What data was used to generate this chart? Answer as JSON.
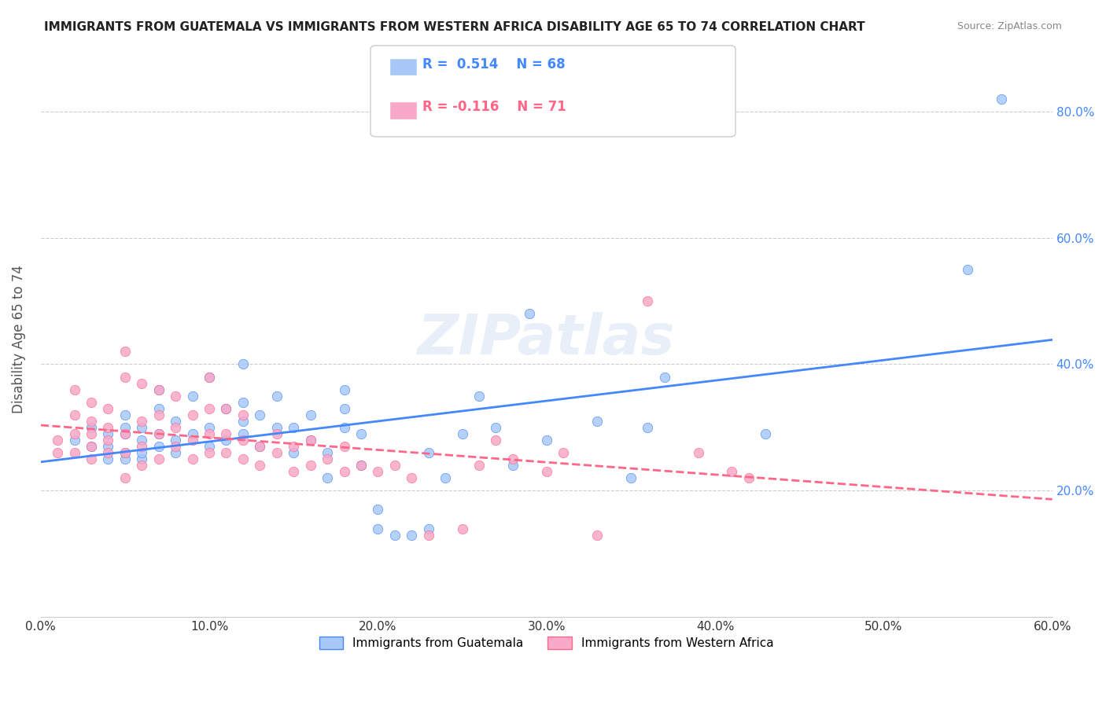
{
  "title": "IMMIGRANTS FROM GUATEMALA VS IMMIGRANTS FROM WESTERN AFRICA DISABILITY AGE 65 TO 74 CORRELATION CHART",
  "source": "Source: ZipAtlas.com",
  "xlabel_ticks": [
    "0.0%",
    "10.0%",
    "20.0%",
    "30.0%",
    "40.0%",
    "50.0%",
    "60.0%"
  ],
  "ylabel_ticks": [
    "20.0%",
    "40.0%",
    "60.0%",
    "80.0%"
  ],
  "xlim": [
    0.0,
    0.6
  ],
  "ylim": [
    0.0,
    0.88
  ],
  "ylabel": "Disability Age 65 to 74",
  "legend_label1": "Immigrants from Guatemala",
  "legend_label2": "Immigrants from Western Africa",
  "R1": 0.514,
  "N1": 68,
  "R2": -0.116,
  "N2": 71,
  "color_blue": "#a8c8f8",
  "color_pink": "#f8a8c8",
  "trendline1_color": "#4488ff",
  "trendline2_color": "#ff6688",
  "watermark": "ZIPatlas",
  "blue_scatter_x": [
    0.02,
    0.03,
    0.03,
    0.04,
    0.04,
    0.04,
    0.05,
    0.05,
    0.05,
    0.05,
    0.05,
    0.06,
    0.06,
    0.06,
    0.06,
    0.07,
    0.07,
    0.07,
    0.07,
    0.08,
    0.08,
    0.08,
    0.09,
    0.09,
    0.1,
    0.1,
    0.1,
    0.11,
    0.11,
    0.12,
    0.12,
    0.12,
    0.12,
    0.13,
    0.13,
    0.14,
    0.14,
    0.15,
    0.15,
    0.16,
    0.16,
    0.17,
    0.17,
    0.18,
    0.18,
    0.18,
    0.19,
    0.19,
    0.2,
    0.2,
    0.21,
    0.22,
    0.23,
    0.23,
    0.24,
    0.25,
    0.26,
    0.27,
    0.28,
    0.29,
    0.3,
    0.33,
    0.35,
    0.36,
    0.37,
    0.43,
    0.55,
    0.57
  ],
  "blue_scatter_y": [
    0.28,
    0.27,
    0.3,
    0.25,
    0.27,
    0.29,
    0.25,
    0.26,
    0.29,
    0.3,
    0.32,
    0.25,
    0.26,
    0.28,
    0.3,
    0.27,
    0.29,
    0.33,
    0.36,
    0.26,
    0.28,
    0.31,
    0.29,
    0.35,
    0.27,
    0.3,
    0.38,
    0.28,
    0.33,
    0.29,
    0.31,
    0.34,
    0.4,
    0.27,
    0.32,
    0.3,
    0.35,
    0.26,
    0.3,
    0.28,
    0.32,
    0.22,
    0.26,
    0.3,
    0.33,
    0.36,
    0.24,
    0.29,
    0.14,
    0.17,
    0.13,
    0.13,
    0.14,
    0.26,
    0.22,
    0.29,
    0.35,
    0.3,
    0.24,
    0.48,
    0.28,
    0.31,
    0.22,
    0.3,
    0.38,
    0.29,
    0.55,
    0.82
  ],
  "pink_scatter_x": [
    0.01,
    0.01,
    0.02,
    0.02,
    0.02,
    0.02,
    0.03,
    0.03,
    0.03,
    0.03,
    0.03,
    0.04,
    0.04,
    0.04,
    0.04,
    0.05,
    0.05,
    0.05,
    0.05,
    0.05,
    0.06,
    0.06,
    0.06,
    0.06,
    0.07,
    0.07,
    0.07,
    0.07,
    0.08,
    0.08,
    0.08,
    0.09,
    0.09,
    0.09,
    0.1,
    0.1,
    0.1,
    0.1,
    0.11,
    0.11,
    0.11,
    0.12,
    0.12,
    0.12,
    0.13,
    0.13,
    0.14,
    0.14,
    0.15,
    0.15,
    0.16,
    0.16,
    0.17,
    0.18,
    0.18,
    0.19,
    0.2,
    0.21,
    0.22,
    0.23,
    0.25,
    0.26,
    0.27,
    0.28,
    0.3,
    0.31,
    0.33,
    0.36,
    0.39,
    0.41,
    0.42
  ],
  "pink_scatter_y": [
    0.26,
    0.28,
    0.26,
    0.29,
    0.32,
    0.36,
    0.25,
    0.27,
    0.29,
    0.31,
    0.34,
    0.26,
    0.28,
    0.3,
    0.33,
    0.22,
    0.26,
    0.29,
    0.38,
    0.42,
    0.24,
    0.27,
    0.31,
    0.37,
    0.25,
    0.29,
    0.32,
    0.36,
    0.27,
    0.3,
    0.35,
    0.25,
    0.28,
    0.32,
    0.26,
    0.29,
    0.33,
    0.38,
    0.26,
    0.29,
    0.33,
    0.25,
    0.28,
    0.32,
    0.24,
    0.27,
    0.26,
    0.29,
    0.23,
    0.27,
    0.24,
    0.28,
    0.25,
    0.23,
    0.27,
    0.24,
    0.23,
    0.24,
    0.22,
    0.13,
    0.14,
    0.24,
    0.28,
    0.25,
    0.23,
    0.26,
    0.13,
    0.5,
    0.26,
    0.23,
    0.22
  ]
}
